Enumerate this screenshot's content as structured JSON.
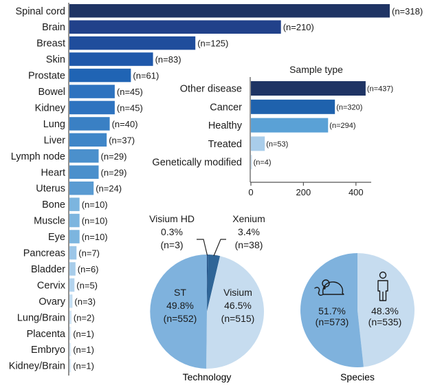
{
  "chart_data": [
    {
      "type": "bar",
      "orientation": "horizontal",
      "title": "",
      "categories": [
        "Spinal cord",
        "Brain",
        "Breast",
        "Skin",
        "Prostate",
        "Bowel",
        "Kidney",
        "Lung",
        "Liver",
        "Lymph node",
        "Heart",
        "Uterus",
        "Bone",
        "Muscle",
        "Eye",
        "Pancreas",
        "Bladder",
        "Cervix",
        "Ovary",
        "Lung/Brain",
        "Placenta",
        "Embryo",
        "Kidney/Brain"
      ],
      "values": [
        318,
        210,
        125,
        83,
        61,
        45,
        45,
        40,
        37,
        29,
        29,
        24,
        10,
        10,
        10,
        7,
        6,
        5,
        3,
        2,
        1,
        1,
        1
      ],
      "value_labels": [
        "(n=318)",
        "(n=210)",
        "(n=125)",
        "(n=83)",
        "(n=61)",
        "(n=45)",
        "(n=45)",
        "(n=40)",
        "(n=37)",
        "(n=29)",
        "(n=29)",
        "(n=24)",
        "(n=10)",
        "(n=10)",
        "(n=10)",
        "(n=7)",
        "(n=6)",
        "(n=5)",
        "(n=3)",
        "(n=2)",
        "(n=1)",
        "(n=1)",
        "(n=1)"
      ],
      "colors": [
        "#1f3464",
        "#21418a",
        "#1f4d9c",
        "#1f58aa",
        "#2064b4",
        "#2e73bf",
        "#2e73bf",
        "#3a80c4",
        "#3f86c8",
        "#4b90cc",
        "#4b90cc",
        "#5a9bd2",
        "#7cb5df",
        "#7cb5df",
        "#7cb5df",
        "#9cc6e8",
        "#a8cdea",
        "#b4d4ee",
        "#c4def2",
        "#cfe3f4",
        "#dae9f6",
        "#dae9f6",
        "#dae9f6"
      ],
      "grid": false,
      "legend": "none"
    },
    {
      "type": "bar",
      "orientation": "horizontal",
      "title": "Sample type",
      "categories": [
        "Other disease",
        "Cancer",
        "Healthy",
        "Treated",
        "Genetically modified"
      ],
      "values": [
        437,
        320,
        294,
        53,
        4
      ],
      "value_labels": [
        "(n=437)",
        "(n=320)",
        "(n=294)",
        "(n=53)",
        "(n=4)"
      ],
      "colors": [
        "#1f3464",
        "#1f62ad",
        "#5aa1d6",
        "#a9cdea",
        "#cfe3f4"
      ],
      "xticks": [
        "0",
        "200",
        "400"
      ],
      "xlim": [
        0,
        460
      ],
      "grid": false,
      "legend": "none"
    },
    {
      "type": "pie",
      "title": "Technology",
      "slices": [
        {
          "label": "Visium HD",
          "percent_label": "0.3%",
          "count_label": "(n=3)",
          "value": 3,
          "color": "#1f4a80"
        },
        {
          "label": "Xenium",
          "percent_label": "3.4%",
          "count_label": "(n=38)",
          "value": 38,
          "color": "#2f6597"
        },
        {
          "label": "Visium",
          "percent_label": "46.5%",
          "count_label": "(n=515)",
          "value": 515,
          "color": "#c6dcef"
        },
        {
          "label": "ST",
          "percent_label": "49.8%",
          "count_label": "(n=552)",
          "value": 552,
          "color": "#7fb2dd"
        }
      ],
      "legend": "none"
    },
    {
      "type": "pie",
      "title": "Species",
      "slices": [
        {
          "label": "Human",
          "icon": "human-icon",
          "percent_label": "48.3%",
          "count_label": "(n=535)",
          "value": 535,
          "color": "#c6dcef"
        },
        {
          "label": "Mouse",
          "icon": "mouse-icon",
          "percent_label": "51.7%",
          "count_label": "(n=573)",
          "value": 573,
          "color": "#7fb2dd"
        }
      ],
      "legend": "none"
    }
  ]
}
